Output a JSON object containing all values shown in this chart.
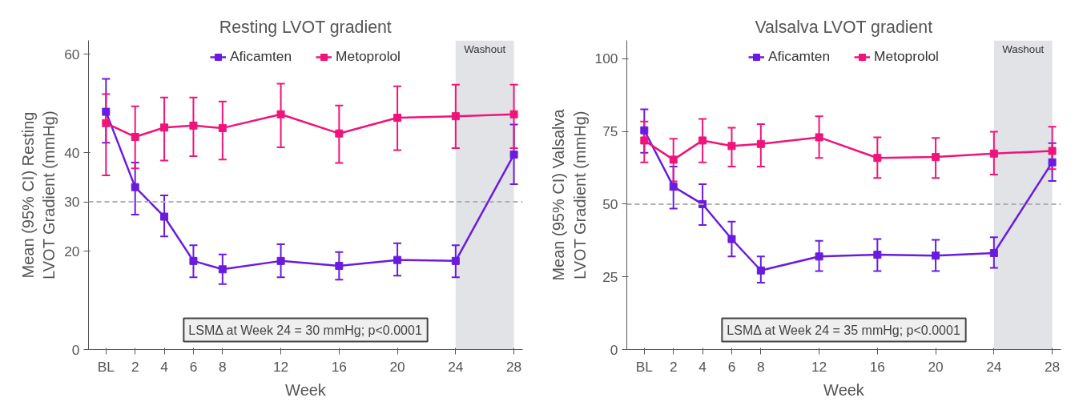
{
  "chart_data": [
    {
      "type": "line",
      "title": "Resting LVOT gradient",
      "xlabel": "Week",
      "ylabel": "Mean (95% CI) Resting\nLVOT Gradient (mmHg)",
      "x": [
        0,
        2,
        4,
        6,
        8,
        12,
        16,
        20,
        24,
        28
      ],
      "xlim": [
        -1.2,
        28.6
      ],
      "xticks": [
        {
          "value": 0,
          "label": "BL"
        },
        2,
        4,
        6,
        8,
        12,
        16,
        20,
        24,
        28
      ],
      "ylim": [
        0,
        62.8
      ],
      "yticks": [
        0,
        20,
        30,
        40,
        60
      ],
      "series": [
        {
          "name": "Aficamten",
          "color": "#6a1be0",
          "values": [
            48.3,
            33,
            27,
            18,
            16.3,
            18,
            17,
            18.2,
            18,
            39.6
          ],
          "errors": [
            [
              42,
              55
            ],
            [
              27.4,
              38
            ],
            [
              23,
              31.3
            ],
            [
              14.7,
              21.2
            ],
            [
              13.3,
              19.3
            ],
            [
              14.7,
              21.4
            ],
            [
              14.2,
              19.8
            ],
            [
              15,
              21.6
            ],
            [
              14.7,
              21.2
            ],
            [
              33.6,
              45.7
            ]
          ]
        },
        {
          "name": "Metoprolol",
          "color": "#f0147a",
          "values": [
            46,
            43.2,
            45.1,
            45.5,
            45,
            47.8,
            43.9,
            47.1,
            47.4,
            47.8
          ],
          "errors": [
            [
              35.4,
              51.9
            ],
            [
              36.8,
              49.4
            ],
            [
              38.4,
              51.2
            ],
            [
              39.3,
              51.2
            ],
            [
              38.6,
              50.4
            ],
            [
              41.1,
              54
            ],
            [
              37.9,
              49.6
            ],
            [
              40.5,
              53.5
            ],
            [
              40.9,
              53.8
            ],
            [
              40.9,
              53.8
            ]
          ]
        }
      ],
      "ref_lines": [
        {
          "axis": "y",
          "value": 30,
          "color": "#b0b0b0",
          "line_style": "dashed"
        }
      ],
      "bands": [
        {
          "axis": "x",
          "from": 24,
          "to": 28,
          "label": "Washout",
          "color": "#e1e3e6"
        }
      ],
      "annotations": [
        "LSMΔ at Week 24 = 30 mmHg; p<0.0001"
      ],
      "marker": "square",
      "line_style": "solid",
      "grid": false,
      "legend": "top"
    },
    {
      "type": "line",
      "title": "Valsalva LVOT gradient",
      "xlabel": "Week",
      "ylabel": "Mean (95% CI) Valsalva\nLVOT Gradient (mmHg)",
      "x": [
        0,
        2,
        4,
        6,
        8,
        12,
        16,
        20,
        24,
        28
      ],
      "xlim": [
        -1.2,
        28.6
      ],
      "xticks": [
        {
          "value": 0,
          "label": "BL"
        },
        2,
        4,
        6,
        8,
        12,
        16,
        20,
        24,
        28
      ],
      "ylim": [
        0,
        106.3
      ],
      "yticks": [
        0,
        25,
        50,
        75,
        100
      ],
      "series": [
        {
          "name": "Aficamten",
          "color": "#6a1be0",
          "values": [
            75.4,
            56,
            50,
            38,
            27.2,
            32,
            32.6,
            32.3,
            33.2,
            64.4
          ],
          "errors": [
            [
              67.7,
              82.6
            ],
            [
              48.5,
              62.9
            ],
            [
              42.8,
              56.9
            ],
            [
              32,
              44
            ],
            [
              23,
              32
            ],
            [
              27,
              37.4
            ],
            [
              27,
              38
            ],
            [
              27,
              37.7
            ],
            [
              28.1,
              38.6
            ],
            [
              58,
              71
            ]
          ]
        },
        {
          "name": "Metoprolol",
          "color": "#f0147a",
          "values": [
            71.9,
            65.3,
            71.9,
            70,
            70.7,
            73,
            65.9,
            66.2,
            67.4,
            68.3
          ],
          "errors": [
            [
              64.4,
              78.4
            ],
            [
              57.8,
              72.5
            ],
            [
              64.4,
              79.3
            ],
            [
              62.9,
              76.3
            ],
            [
              62.9,
              77.5
            ],
            [
              65.9,
              80.2
            ],
            [
              59,
              73
            ],
            [
              59,
              72.8
            ],
            [
              60.2,
              74.9
            ],
            [
              62,
              76.6
            ]
          ]
        }
      ],
      "ref_lines": [
        {
          "axis": "y",
          "value": 50,
          "color": "#b0b0b0",
          "line_style": "dashed"
        }
      ],
      "bands": [
        {
          "axis": "x",
          "from": 24,
          "to": 28,
          "label": "Washout",
          "color": "#e1e3e6"
        }
      ],
      "annotations": [
        "LSMΔ at Week 24 = 35 mmHg; p<0.0001"
      ],
      "marker": "square",
      "line_style": "solid",
      "grid": false,
      "legend": "top"
    }
  ]
}
